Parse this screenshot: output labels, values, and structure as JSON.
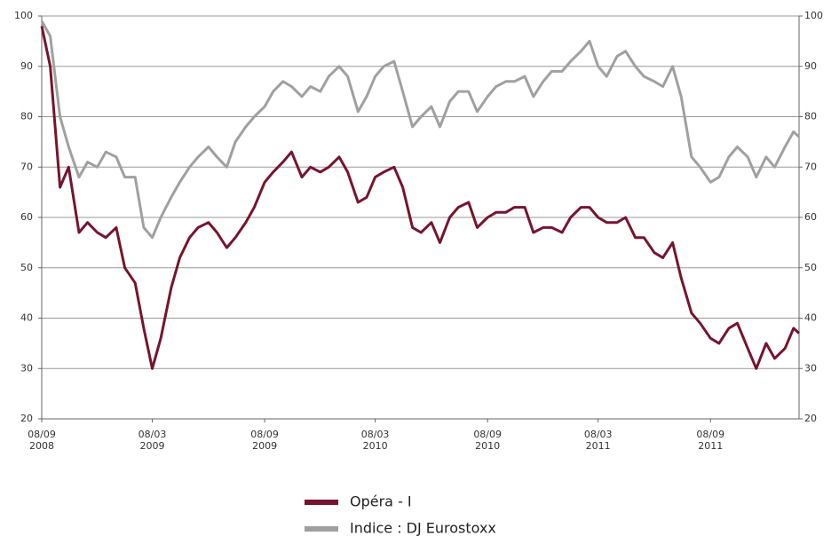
{
  "chart_data": {
    "type": "line",
    "x": [
      "2008-09-08",
      "2008-09-22",
      "2008-10-08",
      "2008-10-22",
      "2008-11-08",
      "2008-11-22",
      "2008-12-08",
      "2008-12-22",
      "2009-01-08",
      "2009-01-22",
      "2009-02-08",
      "2009-02-22",
      "2009-03-08",
      "2009-03-22",
      "2009-04-08",
      "2009-04-22",
      "2009-05-08",
      "2009-05-22",
      "2009-06-08",
      "2009-06-22",
      "2009-07-08",
      "2009-07-22",
      "2009-08-08",
      "2009-08-22",
      "2009-09-08",
      "2009-09-22",
      "2009-10-08",
      "2009-10-22",
      "2009-11-08",
      "2009-11-22",
      "2009-12-08",
      "2009-12-22",
      "2010-01-08",
      "2010-01-22",
      "2010-02-08",
      "2010-02-22",
      "2010-03-08",
      "2010-03-22",
      "2010-04-08",
      "2010-04-22",
      "2010-05-08",
      "2010-05-22",
      "2010-06-08",
      "2010-06-22",
      "2010-07-08",
      "2010-07-22",
      "2010-08-08",
      "2010-08-22",
      "2010-09-08",
      "2010-09-22",
      "2010-10-08",
      "2010-10-22",
      "2010-11-08",
      "2010-11-22",
      "2010-12-08",
      "2010-12-22",
      "2011-01-08",
      "2011-01-22",
      "2011-02-08",
      "2011-02-22",
      "2011-03-08",
      "2011-03-22",
      "2011-04-08",
      "2011-04-22",
      "2011-05-08",
      "2011-05-22",
      "2011-06-08",
      "2011-06-22",
      "2011-07-08",
      "2011-07-22",
      "2011-08-08",
      "2011-08-22",
      "2011-09-08",
      "2011-09-22",
      "2011-10-08",
      "2011-10-22",
      "2011-11-08",
      "2011-11-22",
      "2011-12-08",
      "2011-12-22",
      "2012-01-08",
      "2012-01-22",
      "2012-01-31"
    ],
    "series": [
      {
        "name": "Opéra - I",
        "color": "#76142e",
        "values": [
          98,
          90,
          66,
          70,
          57,
          59,
          57,
          56,
          58,
          50,
          47,
          38,
          30,
          36,
          46,
          52,
          56,
          58,
          59,
          57,
          54,
          56,
          59,
          62,
          67,
          69,
          71,
          73,
          68,
          70,
          69,
          70,
          72,
          69,
          63,
          64,
          68,
          69,
          70,
          66,
          58,
          57,
          59,
          55,
          60,
          62,
          63,
          58,
          60,
          61,
          61,
          62,
          62,
          57,
          58,
          58,
          57,
          60,
          62,
          62,
          60,
          59,
          59,
          60,
          56,
          56,
          53,
          52,
          55,
          48,
          41,
          39,
          36,
          35,
          38,
          39,
          34,
          30,
          35,
          32,
          34,
          38,
          37
        ]
      },
      {
        "name": "Indice : DJ Eurostoxx",
        "color": "#a0a0a0",
        "values": [
          99,
          96,
          80,
          74,
          68,
          71,
          70,
          73,
          72,
          68,
          68,
          58,
          56,
          60,
          64,
          67,
          70,
          72,
          74,
          72,
          70,
          75,
          78,
          80,
          82,
          85,
          87,
          86,
          84,
          86,
          85,
          88,
          90,
          88,
          81,
          84,
          88,
          90,
          91,
          85,
          78,
          80,
          82,
          78,
          83,
          85,
          85,
          81,
          84,
          86,
          87,
          87,
          88,
          84,
          87,
          89,
          89,
          91,
          93,
          95,
          90,
          88,
          92,
          93,
          90,
          88,
          87,
          86,
          90,
          84,
          72,
          70,
          67,
          68,
          72,
          74,
          72,
          68,
          72,
          70,
          74,
          77,
          76
        ]
      }
    ],
    "xlim": [
      "2008-09-08",
      "2012-01-31"
    ],
    "xticks": [
      {
        "value": "2008-09-08",
        "label": "08/09\n2008"
      },
      {
        "value": "2009-03-08",
        "label": "08/03\n2009"
      },
      {
        "value": "2009-09-08",
        "label": "08/09\n2009"
      },
      {
        "value": "2010-03-08",
        "label": "08/03\n2010"
      },
      {
        "value": "2010-09-08",
        "label": "08/09\n2010"
      },
      {
        "value": "2011-03-08",
        "label": "08/03\n2011"
      },
      {
        "value": "2011-09-08",
        "label": "08/09\n2011"
      }
    ],
    "ylim": [
      20,
      100
    ],
    "yticks": [
      20,
      30,
      40,
      50,
      60,
      70,
      80,
      90,
      100
    ],
    "y2lim": [
      20,
      100
    ],
    "y2ticks": [
      20,
      30,
      40,
      50,
      60,
      70,
      80,
      90,
      100
    ],
    "grid": true
  }
}
